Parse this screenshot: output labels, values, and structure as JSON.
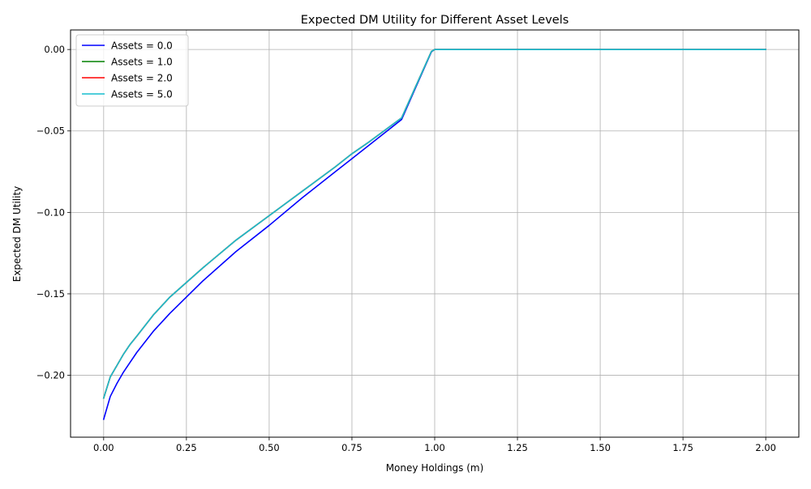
{
  "chart_data": {
    "type": "line",
    "title": "Expected DM Utility for Different Asset Levels",
    "xlabel": "Money Holdings (m)",
    "ylabel": "Expected DM Utility",
    "xlim": [
      -0.1,
      2.1
    ],
    "ylim": [
      -0.238,
      0.012
    ],
    "x_ticks": [
      0.0,
      0.25,
      0.5,
      0.75,
      1.0,
      1.25,
      1.5,
      1.75,
      2.0
    ],
    "x_tick_labels": [
      "0.00",
      "0.25",
      "0.50",
      "0.75",
      "1.00",
      "1.25",
      "1.50",
      "1.75",
      "2.00"
    ],
    "y_ticks": [
      0.0,
      -0.05,
      -0.1,
      -0.15,
      -0.2
    ],
    "y_tick_labels": [
      "0.00",
      "−0.05",
      "−0.10",
      "−0.15",
      "−0.20"
    ],
    "grid": true,
    "legend_position": "top-left",
    "x": [
      0.0,
      0.02,
      0.04,
      0.06,
      0.08,
      0.1,
      0.15,
      0.2,
      0.25,
      0.3,
      0.4,
      0.5,
      0.6,
      0.7,
      0.75,
      0.8,
      0.9,
      0.99,
      1.0,
      1.01,
      1.25,
      1.5,
      1.75,
      2.0
    ],
    "series": [
      {
        "name": "Assets = 0.0",
        "color": "#0000ff",
        "values": [
          -0.227,
          -0.213,
          -0.205,
          -0.198,
          -0.192,
          -0.186,
          -0.173,
          -0.162,
          -0.152,
          -0.142,
          -0.124,
          -0.108,
          -0.091,
          -0.075,
          -0.067,
          -0.059,
          -0.043,
          -0.0015,
          0.0,
          0.0,
          0.0,
          0.0,
          0.0,
          0.0
        ]
      },
      {
        "name": "Assets = 1.0",
        "color": "#008000",
        "values": [
          -0.214,
          -0.201,
          -0.194,
          -0.187,
          -0.181,
          -0.176,
          -0.163,
          -0.152,
          -0.143,
          -0.134,
          -0.117,
          -0.102,
          -0.087,
          -0.072,
          -0.064,
          -0.057,
          -0.042,
          -0.0012,
          0.0,
          0.0,
          0.0,
          0.0,
          0.0,
          0.0
        ]
      },
      {
        "name": "Assets = 2.0",
        "color": "#ff0000",
        "values": [
          -0.214,
          -0.201,
          -0.194,
          -0.187,
          -0.181,
          -0.176,
          -0.163,
          -0.152,
          -0.143,
          -0.134,
          -0.117,
          -0.102,
          -0.087,
          -0.072,
          -0.064,
          -0.057,
          -0.042,
          -0.0012,
          0.0,
          0.0,
          0.0,
          0.0,
          0.0,
          0.0
        ]
      },
      {
        "name": "Assets = 5.0",
        "color": "#17becf",
        "values": [
          -0.214,
          -0.201,
          -0.194,
          -0.187,
          -0.181,
          -0.176,
          -0.163,
          -0.152,
          -0.143,
          -0.134,
          -0.117,
          -0.102,
          -0.087,
          -0.072,
          -0.064,
          -0.057,
          -0.042,
          -0.0012,
          0.0,
          0.0,
          0.0,
          0.0,
          0.0,
          0.0
        ]
      }
    ]
  }
}
